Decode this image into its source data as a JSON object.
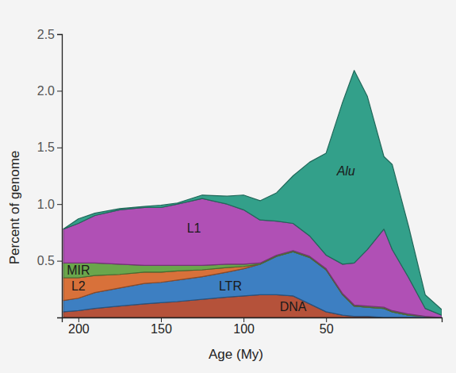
{
  "chart_data": {
    "type": "area",
    "stacked": true,
    "xlabel": "Age (My)",
    "ylabel": "Percent of genome",
    "x": [
      209,
      200,
      190,
      175,
      160,
      150,
      140,
      125,
      110,
      100,
      90,
      80,
      70,
      60,
      50,
      40,
      33,
      25,
      15,
      10,
      0,
      -10,
      -20
    ],
    "xlim": [
      210,
      -20
    ],
    "xticks": [
      200,
      150,
      100,
      50
    ],
    "ylim": [
      0,
      2.5
    ],
    "yticks": [
      0.5,
      {
        "value": 1,
        "label": "1.0"
      },
      1.5,
      {
        "value": 2,
        "label": "2.0"
      },
      2.5
    ],
    "series": [
      {
        "name": "DNA",
        "color": "#b5523a",
        "values": [
          0.05,
          0.06,
          0.08,
          0.1,
          0.12,
          0.13,
          0.14,
          0.16,
          0.18,
          0.19,
          0.2,
          0.2,
          0.19,
          0.12,
          0.05,
          0.02,
          0.01,
          0.01,
          0,
          0,
          0,
          0,
          0
        ]
      },
      {
        "name": "LTR",
        "color": "#3d7fc2",
        "values": [
          0.1,
          0.11,
          0.14,
          0.16,
          0.18,
          0.18,
          0.19,
          0.2,
          0.22,
          0.24,
          0.27,
          0.34,
          0.39,
          0.41,
          0.37,
          0.18,
          0.09,
          0.08,
          0.08,
          0.05,
          0.02,
          0.01,
          0
        ]
      },
      {
        "name": "L2",
        "color": "#d8713a",
        "values": [
          0.2,
          0.18,
          0.15,
          0.12,
          0.1,
          0.09,
          0.08,
          0.06,
          0.04,
          0.02,
          0,
          0,
          0,
          0,
          0,
          0,
          0,
          0,
          0,
          0,
          0,
          0,
          0
        ]
      },
      {
        "name": "MIR",
        "color": "#6aa64c",
        "values": [
          0.13,
          0.13,
          0.11,
          0.09,
          0.06,
          0.06,
          0.05,
          0.04,
          0.03,
          0.02,
          0.01,
          0.01,
          0.01,
          0.01,
          0.01,
          0.01,
          0.01,
          0.01,
          0.01,
          0.01,
          0.01,
          0,
          0
        ]
      },
      {
        "name": "L1",
        "color": "#b050b5",
        "values": [
          0.3,
          0.35,
          0.42,
          0.48,
          0.51,
          0.51,
          0.54,
          0.59,
          0.53,
          0.48,
          0.38,
          0.3,
          0.24,
          0.18,
          0.12,
          0.26,
          0.37,
          0.5,
          0.69,
          0.54,
          0.32,
          0.07,
          0.02
        ]
      },
      {
        "name": "Alu",
        "color": "#33a08a",
        "values": [
          0,
          0.04,
          0.02,
          0.01,
          0.01,
          0.02,
          0.01,
          0.03,
          0.07,
          0.13,
          0.17,
          0.25,
          0.42,
          0.65,
          0.9,
          1.43,
          1.7,
          1.35,
          0.64,
          0.75,
          0.45,
          0.12,
          0.05
        ]
      }
    ]
  }
}
